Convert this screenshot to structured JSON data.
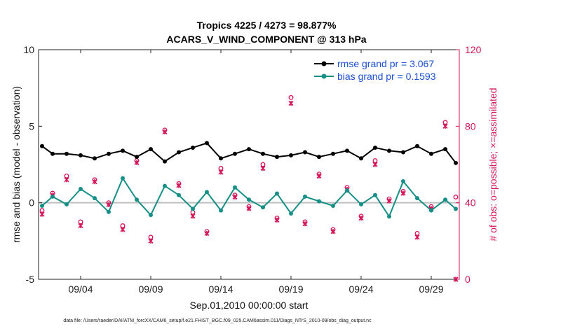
{
  "chart_data": {
    "type": "line",
    "title_line1": "Tropics 4225 / 4273 = 98.877%",
    "title_line2": "ACARS_V_WIND_COMPONENT @ 313 hPa",
    "xlabel": "Sep.01,2010 00:00:00 start",
    "ylabel": "rmse and bias (model - observation)",
    "y2label": "# of obs: o=possible; ×=assimilated",
    "xlim": [
      1,
      31
    ],
    "ylim": [
      -5,
      10
    ],
    "y2lim": [
      0,
      120
    ],
    "x_ticks": [
      4,
      9,
      14,
      19,
      24,
      29
    ],
    "x_tick_labels": [
      "09/04",
      "09/09",
      "09/14",
      "09/19",
      "09/24",
      "09/29"
    ],
    "y_ticks": [
      -5,
      0,
      5,
      10
    ],
    "y_tick_labels": [
      "-5",
      "0",
      "5",
      "10"
    ],
    "y2_ticks": [
      0,
      40,
      80,
      120
    ],
    "y2_tick_labels": [
      "0",
      "40",
      "80",
      "120"
    ],
    "footnote": "data file: /Users/raeder/DAI/ATM_forcXX/CAM6_setup/f.e21.FHIST_BGC.f09_025.CAM6assim.011/Diags_NTrS_2010-09/obs_diag_output.nc",
    "series": [
      {
        "name": "rmse grand pr = 3.067",
        "color": "#000000",
        "x": [
          1.25,
          2.0,
          3.0,
          4.0,
          5.0,
          6.0,
          7.0,
          8.0,
          9.0,
          10.0,
          11.0,
          12.0,
          13.0,
          14.0,
          15.0,
          16.0,
          17.0,
          18.0,
          19.0,
          20.0,
          21.0,
          22.0,
          23.0,
          24.0,
          25.0,
          26.0,
          27.0,
          28.0,
          29.0,
          30.0,
          30.75
        ],
        "values": [
          3.7,
          3.2,
          3.2,
          3.1,
          2.9,
          3.2,
          3.4,
          3.0,
          3.5,
          2.7,
          3.3,
          3.6,
          3.9,
          2.9,
          3.2,
          3.5,
          3.2,
          3.0,
          3.1,
          3.3,
          3.0,
          3.2,
          3.4,
          2.9,
          3.6,
          3.4,
          3.3,
          3.7,
          3.2,
          3.5,
          2.6
        ]
      },
      {
        "name": "bias grand pr = 0.1593",
        "color": "#168f86",
        "x": [
          1.25,
          2.0,
          3.0,
          4.0,
          5.0,
          6.0,
          7.0,
          8.0,
          9.0,
          10.0,
          11.0,
          12.0,
          13.0,
          14.0,
          15.0,
          16.0,
          17.0,
          18.0,
          19.0,
          20.0,
          21.0,
          22.0,
          23.0,
          24.0,
          25.0,
          26.0,
          27.0,
          28.0,
          29.0,
          30.0,
          30.75
        ],
        "values": [
          -0.2,
          0.4,
          -0.1,
          0.9,
          0.3,
          -0.6,
          1.6,
          0.2,
          -0.8,
          1.1,
          0.5,
          -0.4,
          0.7,
          -0.5,
          1.0,
          0.2,
          -0.3,
          0.6,
          -0.7,
          0.4,
          0.1,
          -0.2,
          0.8,
          -0.1,
          0.5,
          -0.9,
          1.4,
          0.3,
          -0.5,
          0.2,
          -0.4
        ]
      }
    ],
    "obs_possible": {
      "marker": "o",
      "color": "#d6145a",
      "x": [
        1.25,
        2.0,
        3.0,
        4.0,
        5.0,
        6.0,
        7.0,
        8.0,
        9.0,
        10.0,
        11.0,
        12.0,
        13.0,
        14.0,
        15.0,
        16.0,
        17.0,
        18.0,
        19.0,
        20.0,
        21.0,
        22.0,
        23.0,
        24.0,
        25.0,
        26.0,
        27.0,
        28.0,
        29.0,
        30.0,
        30.75
      ],
      "values": [
        36,
        45,
        54,
        30,
        52,
        40,
        28,
        62,
        22,
        78,
        50,
        35,
        25,
        58,
        44,
        38,
        60,
        32,
        95,
        30,
        55,
        26,
        48,
        33,
        62,
        42,
        46,
        24,
        38,
        82,
        43
      ]
    },
    "obs_assimilated": {
      "marker": "*",
      "color": "#d6145a",
      "x": [
        1.25,
        2.0,
        3.0,
        4.0,
        5.0,
        6.0,
        7.0,
        8.0,
        9.0,
        10.0,
        11.0,
        12.0,
        13.0,
        14.0,
        15.0,
        16.0,
        17.0,
        18.0,
        19.0,
        20.0,
        21.0,
        22.0,
        23.0,
        24.0,
        25.0,
        26.0,
        27.0,
        28.0,
        29.0,
        30.0,
        30.75
      ],
      "values": [
        34,
        44,
        52,
        28,
        51,
        39,
        26,
        61,
        20,
        77,
        49,
        33,
        24,
        56,
        43,
        37,
        58,
        31,
        92,
        29,
        54,
        25,
        47,
        32,
        60,
        41,
        45,
        22,
        37,
        80,
        0
      ]
    }
  }
}
